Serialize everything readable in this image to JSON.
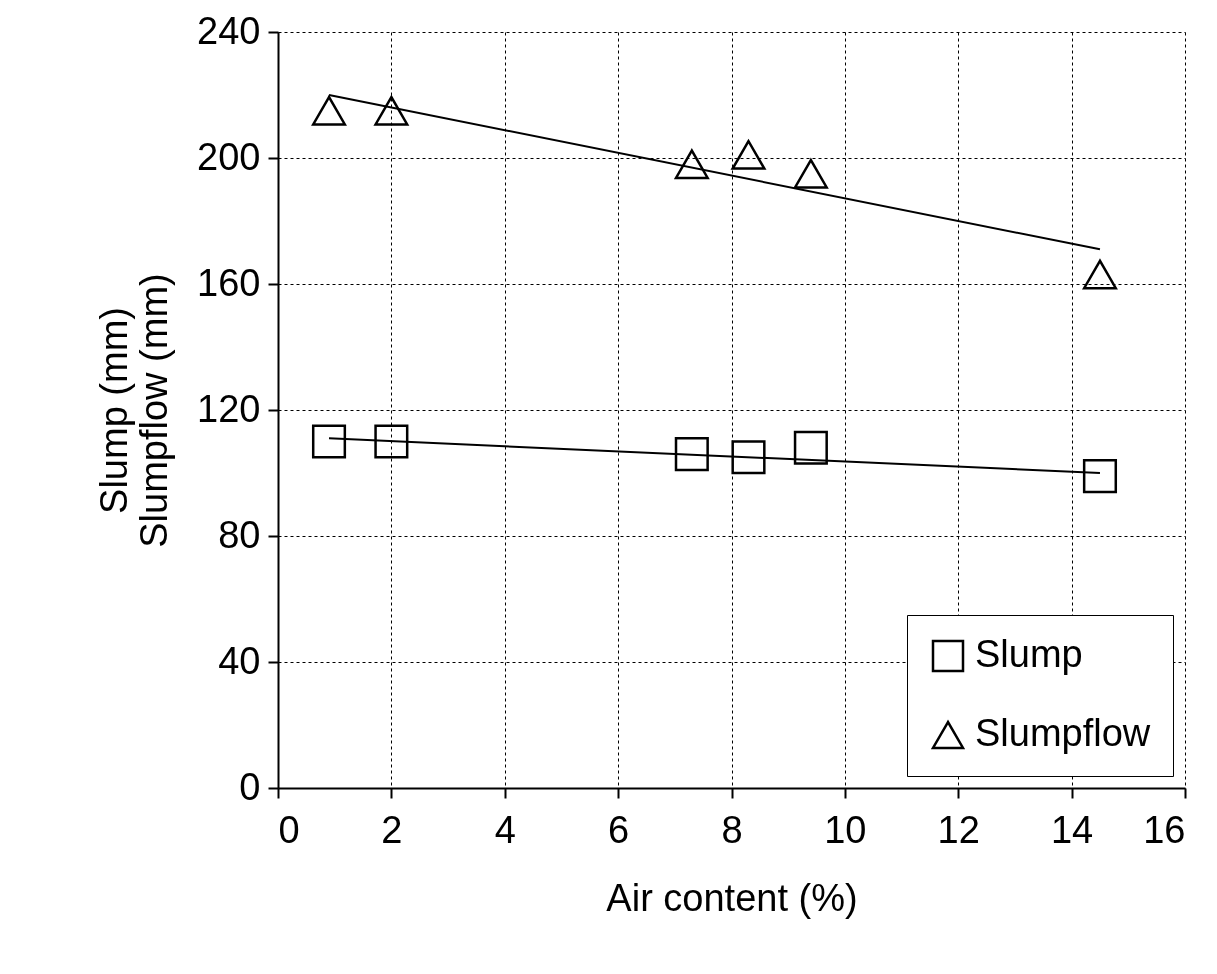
{
  "chart_data": {
    "type": "scatter",
    "xlabel": "Air content (%)",
    "ylabel": "Slump (mm)\nSlumpflow (mm)",
    "xlim": [
      0,
      16
    ],
    "xticks": [
      0,
      2,
      4,
      6,
      8,
      10,
      12,
      14,
      16
    ],
    "ylim": [
      0,
      240
    ],
    "yticks": [
      0,
      40,
      80,
      120,
      160,
      200,
      240
    ],
    "grid": true,
    "legend": "bottom right",
    "series": [
      {
        "name": "Slump",
        "type": "scatter",
        "marker": "square",
        "color": "#000000",
        "x": [
          0.9,
          2,
          7.3,
          8.3,
          9.4,
          14.5
        ],
        "values": [
          110,
          110,
          106,
          105,
          108,
          99
        ]
      },
      {
        "name": "Slumpflow",
        "type": "scatter",
        "marker": "triangle",
        "color": "#000000",
        "x": [
          0.9,
          2,
          7.3,
          8.3,
          9.4,
          14.5
        ],
        "values": [
          215,
          215,
          198,
          201,
          195,
          163
        ]
      },
      {
        "type": "line",
        "marker": "none",
        "color": "#000000",
        "x": [
          0.9,
          14.5
        ],
        "values": [
          111,
          100
        ]
      },
      {
        "type": "line",
        "marker": "none",
        "color": "#000000",
        "x": [
          0.9,
          14.5
        ],
        "values": [
          220,
          171
        ]
      }
    ]
  }
}
